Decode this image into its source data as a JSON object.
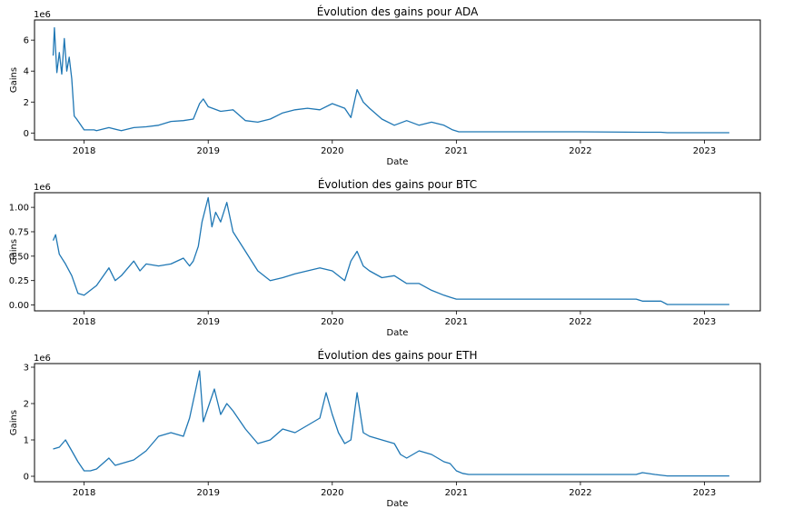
{
  "colors": {
    "series": "#1f77b4"
  },
  "chart_data": [
    {
      "type": "line",
      "title": "Évolution des gains pour ADA",
      "xlabel": "Date",
      "ylabel": "Gains",
      "offset_text": "1e6",
      "xlim": [
        2017.6,
        2023.45
      ],
      "ylim": [
        -0.45,
        7.3
      ],
      "x_ticks": [
        2018,
        2019,
        2020,
        2021,
        2022,
        2023
      ],
      "x_tick_labels": [
        "2018",
        "2019",
        "2020",
        "2021",
        "2022",
        "2023"
      ],
      "y_ticks": [
        0,
        2,
        4,
        6
      ],
      "y_tick_labels": [
        "0",
        "2",
        "4",
        "6"
      ],
      "grid": false,
      "series": [
        {
          "x": [
            2017.75,
            2017.76,
            2017.78,
            2017.8,
            2017.82,
            2017.84,
            2017.86,
            2017.88,
            2017.9,
            2017.92,
            2017.94,
            2018.0,
            2018.08,
            2018.1,
            2018.2,
            2018.3,
            2018.4,
            2018.5,
            2018.6,
            2018.7,
            2018.8,
            2018.88,
            2018.93,
            2018.96,
            2019.0,
            2019.1,
            2019.2,
            2019.3,
            2019.4,
            2019.5,
            2019.6,
            2019.7,
            2019.8,
            2019.9,
            2020.0,
            2020.1,
            2020.15,
            2020.2,
            2020.25,
            2020.3,
            2020.4,
            2020.5,
            2020.6,
            2020.7,
            2020.8,
            2020.9,
            2020.97,
            2021.02,
            2021.2,
            2021.5,
            2022.0,
            2022.5,
            2022.65,
            2022.7,
            2023.0,
            2023.2
          ],
          "y": [
            5.0,
            6.8,
            3.9,
            5.2,
            3.8,
            6.1,
            4.0,
            4.9,
            3.5,
            1.1,
            0.9,
            0.2,
            0.2,
            0.15,
            0.35,
            0.15,
            0.35,
            0.4,
            0.5,
            0.75,
            0.8,
            0.9,
            1.9,
            2.2,
            1.7,
            1.4,
            1.5,
            0.8,
            0.7,
            0.9,
            1.3,
            1.5,
            1.6,
            1.5,
            1.9,
            1.6,
            1.0,
            2.8,
            2.0,
            1.6,
            0.9,
            0.5,
            0.8,
            0.5,
            0.7,
            0.5,
            0.2,
            0.08,
            0.08,
            0.08,
            0.08,
            0.05,
            0.05,
            0.02,
            0.02,
            0.02
          ]
        }
      ]
    },
    {
      "type": "line",
      "title": "Évolution des gains pour BTC",
      "xlabel": "Date",
      "ylabel": "Gains",
      "offset_text": "1e6",
      "xlim": [
        2017.6,
        2023.45
      ],
      "ylim": [
        -0.06,
        1.15
      ],
      "x_ticks": [
        2018,
        2019,
        2020,
        2021,
        2022,
        2023
      ],
      "x_tick_labels": [
        "2018",
        "2019",
        "2020",
        "2021",
        "2022",
        "2023"
      ],
      "y_ticks": [
        0,
        0.25,
        0.5,
        0.75,
        1.0
      ],
      "y_tick_labels": [
        "0.00",
        "0.25",
        "0.50",
        "0.75",
        "1.00"
      ],
      "grid": false,
      "series": [
        {
          "x": [
            2017.75,
            2017.77,
            2017.8,
            2017.85,
            2017.9,
            2017.95,
            2018.0,
            2018.05,
            2018.1,
            2018.2,
            2018.25,
            2018.3,
            2018.4,
            2018.45,
            2018.5,
            2018.6,
            2018.7,
            2018.8,
            2018.85,
            2018.88,
            2018.92,
            2018.95,
            2019.0,
            2019.03,
            2019.06,
            2019.1,
            2019.15,
            2019.2,
            2019.3,
            2019.4,
            2019.5,
            2019.6,
            2019.7,
            2019.8,
            2019.9,
            2020.0,
            2020.1,
            2020.15,
            2020.2,
            2020.25,
            2020.3,
            2020.4,
            2020.5,
            2020.6,
            2020.7,
            2020.8,
            2020.9,
            2020.95,
            2021.0,
            2021.5,
            2022.0,
            2022.45,
            2022.5,
            2022.6,
            2022.65,
            2022.7,
            2023.0,
            2023.2
          ],
          "y": [
            0.66,
            0.72,
            0.52,
            0.42,
            0.3,
            0.12,
            0.1,
            0.15,
            0.2,
            0.38,
            0.25,
            0.3,
            0.45,
            0.35,
            0.42,
            0.4,
            0.42,
            0.48,
            0.4,
            0.45,
            0.6,
            0.85,
            1.1,
            0.8,
            0.95,
            0.85,
            1.05,
            0.75,
            0.55,
            0.35,
            0.25,
            0.28,
            0.32,
            0.35,
            0.38,
            0.35,
            0.25,
            0.45,
            0.55,
            0.4,
            0.35,
            0.28,
            0.3,
            0.22,
            0.22,
            0.15,
            0.1,
            0.08,
            0.06,
            0.06,
            0.06,
            0.06,
            0.04,
            0.04,
            0.04,
            0.005,
            0.005,
            0.005
          ]
        }
      ]
    },
    {
      "type": "line",
      "title": "Évolution des gains pour ETH",
      "xlabel": "Date",
      "ylabel": "Gains",
      "offset_text": "1e6",
      "xlim": [
        2017.6,
        2023.45
      ],
      "ylim": [
        -0.15,
        3.1
      ],
      "x_ticks": [
        2018,
        2019,
        2020,
        2021,
        2022,
        2023
      ],
      "x_tick_labels": [
        "2018",
        "2019",
        "2020",
        "2021",
        "2022",
        "2023"
      ],
      "y_ticks": [
        0,
        1,
        2,
        3
      ],
      "y_tick_labels": [
        "0",
        "1",
        "2",
        "3"
      ],
      "grid": false,
      "series": [
        {
          "x": [
            2017.75,
            2017.8,
            2017.85,
            2017.9,
            2017.95,
            2018.0,
            2018.05,
            2018.1,
            2018.2,
            2018.25,
            2018.3,
            2018.4,
            2018.5,
            2018.6,
            2018.7,
            2018.8,
            2018.85,
            2018.9,
            2018.93,
            2018.96,
            2019.0,
            2019.05,
            2019.1,
            2019.15,
            2019.2,
            2019.3,
            2019.4,
            2019.5,
            2019.6,
            2019.7,
            2019.8,
            2019.9,
            2019.95,
            2020.0,
            2020.05,
            2020.1,
            2020.15,
            2020.2,
            2020.25,
            2020.3,
            2020.4,
            2020.5,
            2020.55,
            2020.6,
            2020.7,
            2020.8,
            2020.9,
            2020.95,
            2021.0,
            2021.05,
            2021.1,
            2021.5,
            2022.0,
            2022.45,
            2022.5,
            2022.6,
            2022.7,
            2023.0,
            2023.2
          ],
          "y": [
            0.75,
            0.8,
            1.0,
            0.7,
            0.4,
            0.15,
            0.15,
            0.2,
            0.5,
            0.3,
            0.35,
            0.45,
            0.7,
            1.1,
            1.2,
            1.1,
            1.6,
            2.4,
            2.9,
            1.5,
            1.9,
            2.4,
            1.7,
            2.0,
            1.8,
            1.3,
            0.9,
            1.0,
            1.3,
            1.2,
            1.4,
            1.6,
            2.3,
            1.7,
            1.2,
            0.9,
            1.0,
            2.3,
            1.2,
            1.1,
            1.0,
            0.9,
            0.6,
            0.5,
            0.7,
            0.6,
            0.4,
            0.35,
            0.15,
            0.08,
            0.05,
            0.05,
            0.05,
            0.05,
            0.1,
            0.05,
            0.01,
            0.01,
            0.01
          ]
        }
      ]
    }
  ]
}
